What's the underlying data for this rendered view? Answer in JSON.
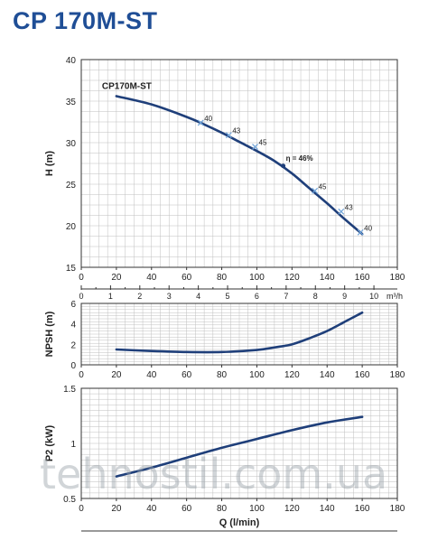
{
  "title": "CP 170M-ST",
  "watermark": "tehnostil.com.ua",
  "colors": {
    "curve": "#1f3f7a",
    "title": "#1f4e96",
    "grid": "#bfbfbf",
    "marker": "#6fa3d8"
  },
  "chart_data": [
    {
      "type": "line",
      "name": "head",
      "ylabel": "H (m)",
      "xlim": [
        0,
        180
      ],
      "ylim": [
        15,
        40
      ],
      "x_ticks": [
        0,
        20,
        40,
        60,
        80,
        100,
        120,
        140,
        160,
        180
      ],
      "y_ticks": [
        15,
        20,
        25,
        30,
        35,
        40
      ],
      "secondary_x_ticks": [
        "0",
        "1",
        "2",
        "3",
        "4",
        "5",
        "6",
        "7",
        "8",
        "9",
        "10"
      ],
      "secondary_x_unit": "m³/h",
      "grid": true,
      "series": [
        {
          "name": "CP170M-ST",
          "x": [
            20,
            40,
            60,
            70,
            80,
            90,
            100,
            110,
            120,
            130,
            140,
            150,
            160
          ],
          "y": [
            35.6,
            34.6,
            33.1,
            32.2,
            31.2,
            30.1,
            29.0,
            27.8,
            26.3,
            24.5,
            22.7,
            20.8,
            19.0
          ]
        }
      ],
      "efficiency_labels": [
        {
          "x": 68,
          "y": 32.4,
          "label": "40"
        },
        {
          "x": 84,
          "y": 30.9,
          "label": "43"
        },
        {
          "x": 99,
          "y": 29.5,
          "label": "45"
        },
        {
          "x": 115,
          "y": 27.2,
          "label": "η = 46%"
        },
        {
          "x": 133,
          "y": 24.2,
          "label": "45"
        },
        {
          "x": 148,
          "y": 21.7,
          "label": "43"
        },
        {
          "x": 159,
          "y": 19.2,
          "label": "40"
        }
      ]
    },
    {
      "type": "line",
      "name": "npsh",
      "ylabel": "NPSH (m)",
      "xlim": [
        0,
        180
      ],
      "ylim": [
        0,
        6
      ],
      "x_ticks": [
        0,
        20,
        40,
        60,
        80,
        100,
        120,
        140,
        160,
        180
      ],
      "y_ticks": [
        0,
        2,
        4,
        6
      ],
      "grid": true,
      "series": [
        {
          "x": [
            20,
            40,
            60,
            80,
            100,
            110,
            120,
            130,
            140,
            150,
            160
          ],
          "y": [
            1.5,
            1.35,
            1.25,
            1.25,
            1.45,
            1.7,
            2.0,
            2.6,
            3.3,
            4.2,
            5.1
          ]
        }
      ]
    },
    {
      "type": "line",
      "name": "power",
      "ylabel": "P2 (kW)",
      "xlabel": "Q (l/min)",
      "xlim": [
        0,
        180
      ],
      "ylim": [
        0.5,
        1.5
      ],
      "x_ticks": [
        0,
        20,
        40,
        60,
        80,
        100,
        120,
        140,
        160,
        180
      ],
      "y_ticks": [
        0.5,
        1,
        1.5
      ],
      "y_tick_labels": [
        "0.5",
        "1",
        "1.5"
      ],
      "grid": true,
      "series": [
        {
          "x": [
            20,
            40,
            60,
            80,
            100,
            120,
            140,
            160
          ],
          "y": [
            0.7,
            0.78,
            0.87,
            0.96,
            1.04,
            1.12,
            1.19,
            1.24
          ]
        }
      ]
    }
  ]
}
